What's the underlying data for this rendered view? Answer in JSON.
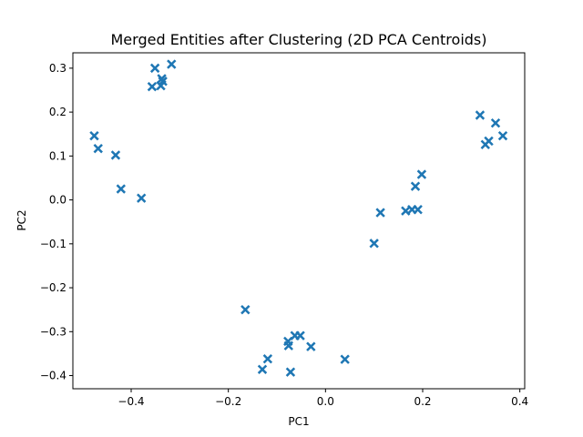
{
  "chart_data": {
    "type": "scatter",
    "title": "Merged Entities after Clustering (2D PCA Centroids)",
    "xlabel": "PC1",
    "ylabel": "PC2",
    "xlim": [
      -0.52,
      0.41
    ],
    "ylim": [
      -0.43,
      0.335
    ],
    "xticks": [
      {
        "value": -0.4,
        "label": "−0.4"
      },
      {
        "value": -0.2,
        "label": "−0.2"
      },
      {
        "value": 0.0,
        "label": "0.0"
      },
      {
        "value": 0.2,
        "label": "0.2"
      },
      {
        "value": 0.4,
        "label": "0.4"
      }
    ],
    "yticks": [
      {
        "value": -0.4,
        "label": "−0.4"
      },
      {
        "value": -0.3,
        "label": "−0.3"
      },
      {
        "value": -0.2,
        "label": "−0.2"
      },
      {
        "value": -0.1,
        "label": "−0.1"
      },
      {
        "value": 0.0,
        "label": "0.0"
      },
      {
        "value": 0.1,
        "label": "0.1"
      },
      {
        "value": 0.2,
        "label": "0.2"
      },
      {
        "value": 0.3,
        "label": "0.3"
      }
    ],
    "grid": false,
    "legend": "none",
    "marker": "X",
    "color": "#1f77b4",
    "points": [
      {
        "x": -0.476,
        "y": 0.146
      },
      {
        "x": -0.468,
        "y": 0.117
      },
      {
        "x": -0.432,
        "y": 0.102
      },
      {
        "x": -0.421,
        "y": 0.025
      },
      {
        "x": -0.379,
        "y": 0.004
      },
      {
        "x": -0.357,
        "y": 0.258
      },
      {
        "x": -0.351,
        "y": 0.3
      },
      {
        "x": -0.339,
        "y": 0.26
      },
      {
        "x": -0.337,
        "y": 0.276
      },
      {
        "x": -0.335,
        "y": 0.27
      },
      {
        "x": -0.317,
        "y": 0.309
      },
      {
        "x": -0.165,
        "y": -0.25
      },
      {
        "x": -0.13,
        "y": -0.386
      },
      {
        "x": -0.119,
        "y": -0.362
      },
      {
        "x": -0.077,
        "y": -0.322
      },
      {
        "x": -0.076,
        "y": -0.332
      },
      {
        "x": -0.072,
        "y": -0.392
      },
      {
        "x": -0.063,
        "y": -0.309
      },
      {
        "x": -0.052,
        "y": -0.309
      },
      {
        "x": -0.03,
        "y": -0.334
      },
      {
        "x": 0.04,
        "y": -0.363
      },
      {
        "x": 0.1,
        "y": -0.099
      },
      {
        "x": 0.113,
        "y": -0.029
      },
      {
        "x": 0.165,
        "y": -0.025
      },
      {
        "x": 0.178,
        "y": -0.022
      },
      {
        "x": 0.185,
        "y": 0.031
      },
      {
        "x": 0.19,
        "y": -0.022
      },
      {
        "x": 0.198,
        "y": 0.058
      },
      {
        "x": 0.318,
        "y": 0.193
      },
      {
        "x": 0.329,
        "y": 0.126
      },
      {
        "x": 0.336,
        "y": 0.134
      },
      {
        "x": 0.35,
        "y": 0.175
      },
      {
        "x": 0.365,
        "y": 0.146
      }
    ]
  }
}
